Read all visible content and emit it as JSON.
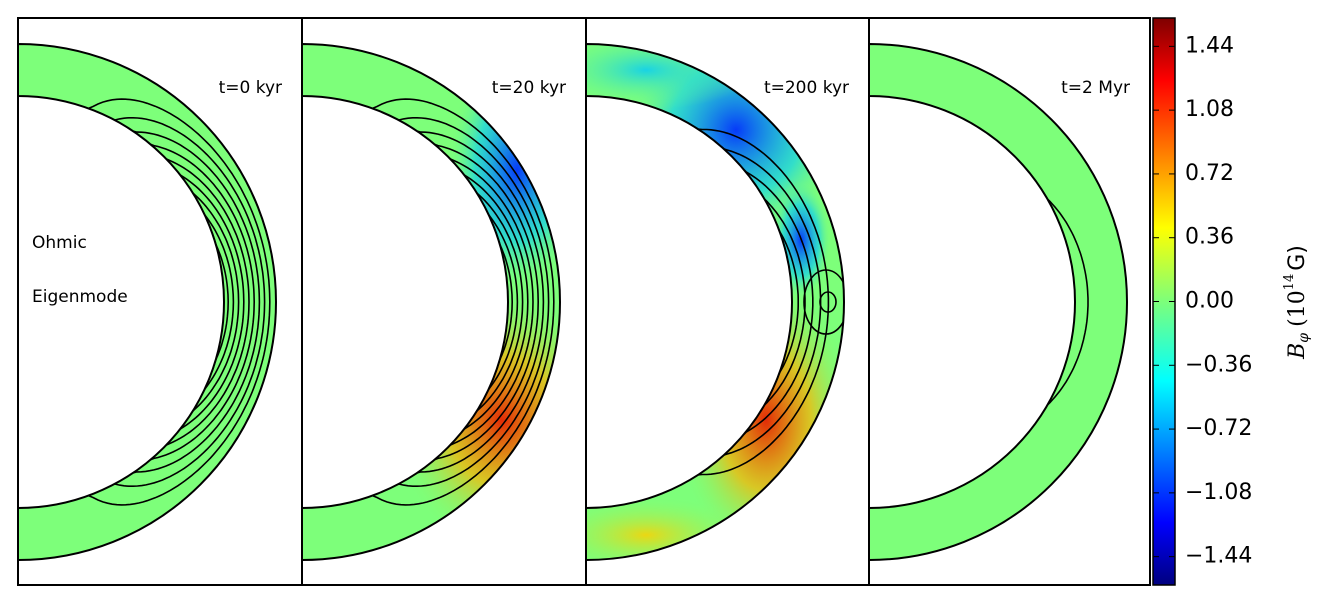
{
  "chart_data": {
    "type": "contour",
    "panels": [
      {
        "label": "t=0 kyr"
      },
      {
        "label": "t=20 kyr"
      },
      {
        "label": "t=200 kyr"
      },
      {
        "label": "t=2 Myr"
      }
    ],
    "annotations": [
      "Ohmic",
      "Eigenmode"
    ],
    "colorbar": {
      "label": [
        "B",
        "φ",
        "(10",
        "14",
        "G)"
      ],
      "lim": [
        -1.6,
        1.6
      ],
      "ticks": [
        1.44,
        1.08,
        0.72,
        0.36,
        {
          "value": 0,
          "label": "0.00"
        },
        {
          "value": -0.36,
          "label": "−0.36"
        },
        {
          "value": -0.72,
          "label": "−0.72"
        },
        {
          "value": -1.08,
          "label": "−1.08"
        },
        {
          "value": -1.44,
          "label": "−1.44"
        }
      ]
    }
  }
}
